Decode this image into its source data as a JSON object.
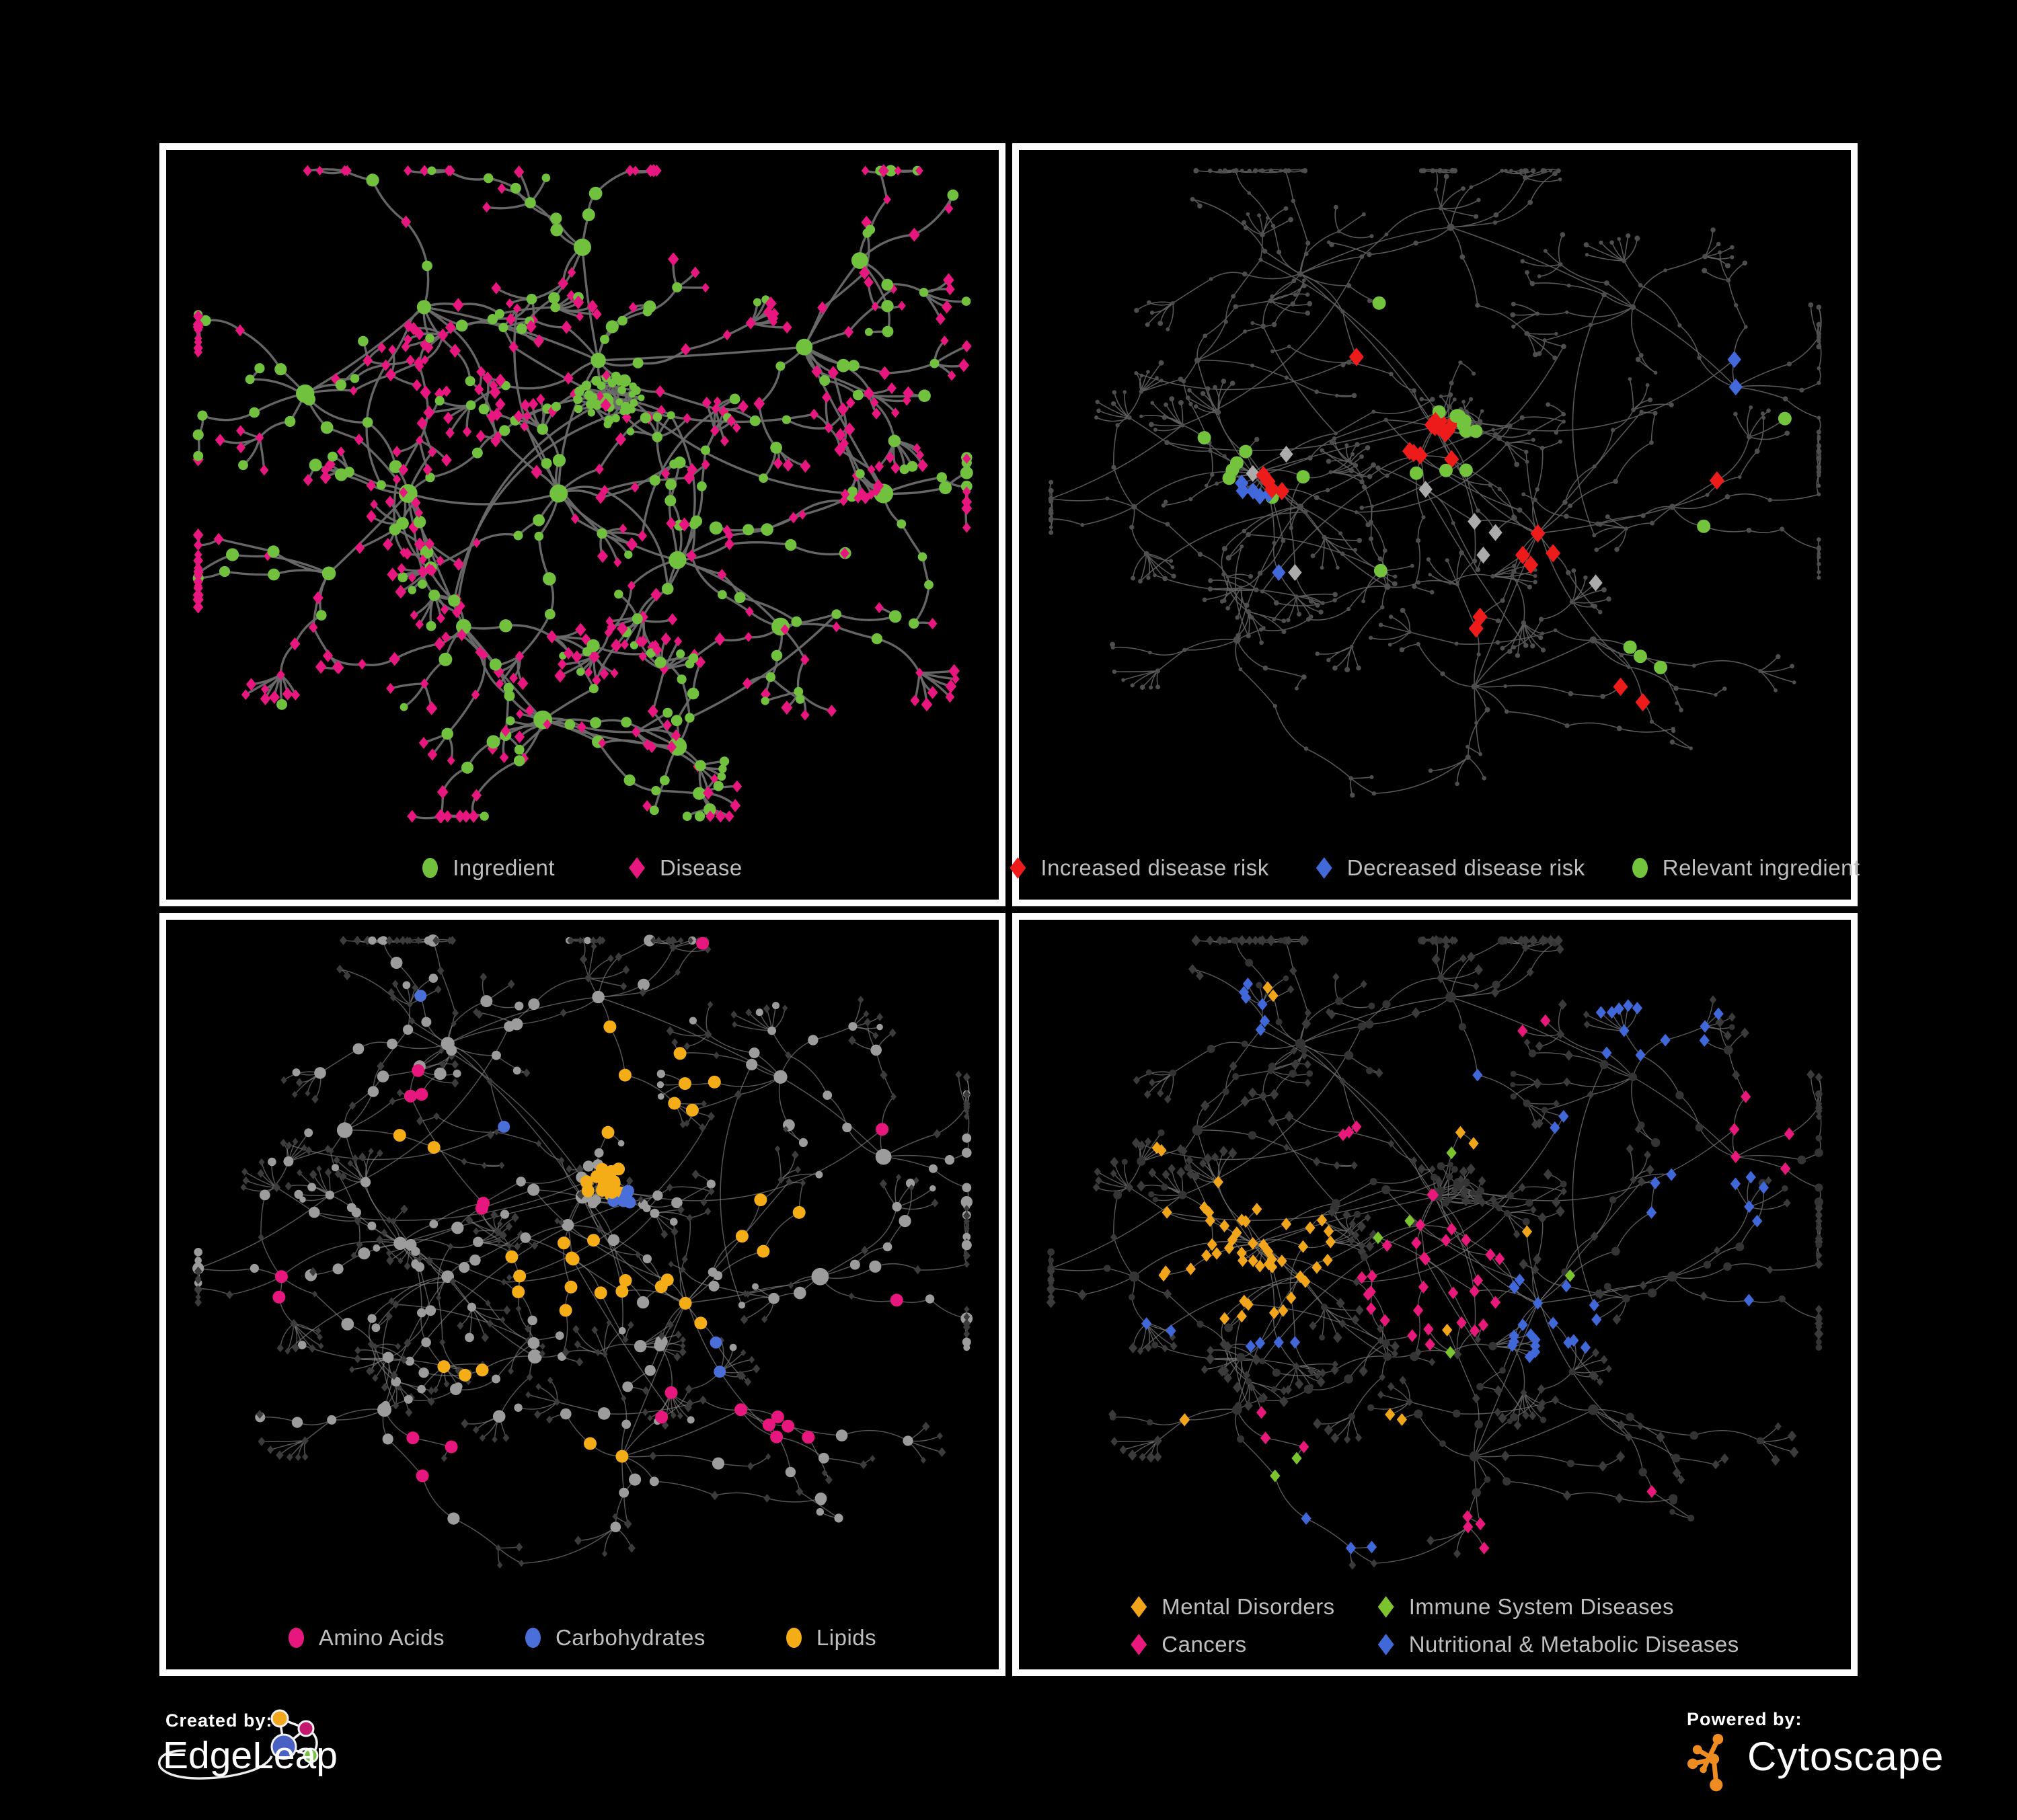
{
  "figure": {
    "background": "#000000",
    "panel_border_color": "#FCFCFC"
  },
  "footer": {
    "created_by_label": "Created by:",
    "edgeleap_brand": "EdgeLeap",
    "powered_by_label": "Powered by:",
    "cytoscape_brand": "Cytoscape",
    "edgeleap_node_colors": {
      "orange": "#F2A71F",
      "magenta": "#C4176E",
      "blue": "#4861C2",
      "green": "#76C043"
    },
    "cytoscape_icon_color": "#EE8B21"
  },
  "topologies": {
    "A": {
      "seed": 1337,
      "internal_diamond_p": 0.42,
      "leaf_diamond_p": 0.83,
      "fan_p": 0.6,
      "crosslinks": 42,
      "ball": [
        0.53,
        0.36,
        40,
        0.045
      ],
      "ball_diamond_p": 0.12,
      "hubs": [
        [
          0.47,
          0.5,
          1.6
        ],
        [
          0.28,
          0.5,
          1.5
        ],
        [
          0.52,
          0.3,
          1.0
        ],
        [
          0.62,
          0.6,
          1.3
        ],
        [
          0.3,
          0.22,
          1.1
        ],
        [
          0.5,
          0.13,
          0.9
        ],
        [
          0.15,
          0.35,
          0.8
        ],
        [
          0.78,
          0.28,
          1.0
        ],
        [
          0.88,
          0.5,
          0.8
        ],
        [
          0.35,
          0.7,
          1.0
        ],
        [
          0.45,
          0.84,
          1.0
        ],
        [
          0.62,
          0.88,
          0.8
        ],
        [
          0.75,
          0.7,
          0.9
        ],
        [
          0.18,
          0.62,
          0.8
        ],
        [
          0.85,
          0.15,
          0.7
        ]
      ]
    },
    "B": {
      "seed": 4242,
      "internal_diamond_p": 0.5,
      "leaf_diamond_p": 0.8,
      "fan_p": 0.58,
      "crosslinks": 60,
      "ball": [
        0.53,
        0.38,
        30,
        0.04
      ],
      "ball_diamond_p": 0.4,
      "hubs": [
        [
          0.5,
          0.4,
          1.6
        ],
        [
          0.27,
          0.47,
          1.5
        ],
        [
          0.33,
          0.52,
          1.0
        ],
        [
          0.63,
          0.56,
          1.3
        ],
        [
          0.55,
          0.79,
          1.2
        ],
        [
          0.33,
          0.17,
          1.1
        ],
        [
          0.52,
          0.1,
          0.9
        ],
        [
          0.2,
          0.3,
          0.9
        ],
        [
          0.75,
          0.22,
          0.9
        ],
        [
          0.88,
          0.34,
          0.8
        ],
        [
          0.8,
          0.52,
          0.9
        ],
        [
          0.25,
          0.72,
          1.0
        ],
        [
          0.44,
          0.64,
          0.8
        ],
        [
          0.7,
          0.72,
          0.9
        ],
        [
          0.12,
          0.52,
          0.7
        ]
      ]
    }
  },
  "panels": [
    {
      "key": "ingredient-disease",
      "topology": "A",
      "legend": {
        "columns": 1,
        "gap": 110,
        "items": [
          {
            "label": "Ingredient",
            "shape": "circle",
            "color": "#72C13E"
          },
          {
            "label": "Disease",
            "shape": "diamond",
            "color": "#E8177F"
          }
        ]
      },
      "style": {
        "edge_color": "#6C6C6C",
        "edge_width": 3.4,
        "edge_opacity": 0.95,
        "circle_fill": "#72C13E",
        "diamond_fill": "#E8177F",
        "r_hub": 12,
        "r_internal": 8,
        "r_leaf": 6.5,
        "r_ball": 6,
        "diamond_s": 8
      },
      "highlights": []
    },
    {
      "key": "disease-risk",
      "topology": "B",
      "legend": {
        "columns": 1,
        "gap": 70,
        "items": [
          {
            "label": "Increased disease risk",
            "shape": "diamond",
            "color": "#EE1B1B"
          },
          {
            "label": "Decreased disease risk",
            "shape": "diamond",
            "color": "#4169D9"
          },
          {
            "label": "Relevant ingredient",
            "shape": "circle",
            "color": "#74C33C"
          }
        ]
      },
      "style": {
        "edge_color": "#606060",
        "edge_width": 1.6,
        "edge_opacity": 0.9,
        "base_mode": "dots",
        "dot_fill": "#4E4E4E",
        "dot_r": 3.2,
        "dot_hub_r": 4.5,
        "circle_fill": "#4E4E4E",
        "diamond_fill": "#4E4E4E",
        "r_hub": 4.5,
        "r_internal": 3.2,
        "r_leaf": 3,
        "r_ball": 3.2,
        "diamond_s": 3.2
      },
      "highlights": [
        {
          "color": "#EE1B1B",
          "shape": "diamond",
          "size": 13,
          "blobs": [
            [
              0.5,
              0.42,
              0.15,
              13
            ],
            [
              0.3,
              0.47,
              0.1,
              4
            ],
            [
              0.63,
              0.58,
              0.1,
              4
            ],
            [
              0.4,
              0.27,
              0.05,
              1
            ],
            [
              0.75,
              0.8,
              0.1,
              2
            ],
            [
              0.86,
              0.44,
              0.06,
              1
            ],
            [
              0.55,
              0.68,
              0.06,
              2
            ]
          ]
        },
        {
          "color": "#4169D9",
          "shape": "diamond",
          "size": 12,
          "blobs": [
            [
              0.27,
              0.5,
              0.09,
              5
            ],
            [
              0.88,
              0.3,
              0.045,
              2
            ],
            [
              0.3,
              0.6,
              0.04,
              1
            ]
          ]
        },
        {
          "color": "#ABABAB",
          "shape": "diamond",
          "size": 12,
          "blobs": [
            [
              0.29,
              0.45,
              0.07,
              2
            ],
            [
              0.57,
              0.56,
              0.12,
              3
            ],
            [
              0.34,
              0.62,
              0.05,
              1
            ],
            [
              0.7,
              0.64,
              0.05,
              1
            ],
            [
              0.52,
              0.5,
              0.05,
              1
            ]
          ]
        },
        {
          "color": "#74C33C",
          "shape": "circle",
          "size": 10,
          "blobs": [
            [
              0.5,
              0.43,
              0.13,
              12
            ],
            [
              0.29,
              0.48,
              0.11,
              6
            ],
            [
              0.42,
              0.62,
              0.05,
              1
            ],
            [
              0.78,
              0.73,
              0.08,
              3
            ],
            [
              0.93,
              0.4,
              0.04,
              1
            ],
            [
              0.86,
              0.55,
              0.05,
              1
            ],
            [
              0.2,
              0.42,
              0.05,
              1
            ],
            [
              0.48,
              0.24,
              0.06,
              2
            ]
          ]
        }
      ]
    },
    {
      "key": "nutrient-categories",
      "topology": "B",
      "legend": {
        "columns": 1,
        "gap": 120,
        "items": [
          {
            "label": "Amino Acids",
            "shape": "circle",
            "color": "#E8177D"
          },
          {
            "label": "Carbohydrates",
            "shape": "circle",
            "color": "#4A6FD8"
          },
          {
            "label": "Lipids",
            "shape": "circle",
            "color": "#F5AD17"
          }
        ]
      },
      "style": {
        "edge_color": "#8C8C8C",
        "edge_width": 1.5,
        "edge_opacity": 0.6,
        "circle_fill": "#9C9C9C",
        "diamond_fill": "#3C3C3C",
        "r_hub": 10.5,
        "r_internal": 7.5,
        "r_leaf": 5.5,
        "r_ball": 7,
        "diamond_s": 5.5,
        "highlight_no_leaf_circles": true
      },
      "highlights": [
        {
          "color": "#F5AD17",
          "shape": "circle",
          "size": 9.5,
          "blobs": [
            [
              0.53,
              0.38,
              0.065,
              18
            ],
            [
              0.48,
              0.52,
              0.12,
              12
            ],
            [
              0.55,
              0.22,
              0.13,
              8
            ],
            [
              0.63,
              0.57,
              0.08,
              4
            ],
            [
              0.76,
              0.45,
              0.2,
              4
            ],
            [
              0.35,
              0.64,
              0.1,
              3
            ],
            [
              0.3,
              0.33,
              0.08,
              2
            ],
            [
              0.5,
              0.78,
              0.07,
              2
            ]
          ]
        },
        {
          "color": "#E8177D",
          "shape": "circle",
          "size": 9.5,
          "blobs": [
            [
              0.3,
              0.24,
              0.1,
              3
            ],
            [
              0.38,
              0.42,
              0.09,
              2
            ],
            [
              0.76,
              0.72,
              0.13,
              6
            ],
            [
              0.3,
              0.8,
              0.1,
              3
            ],
            [
              0.12,
              0.55,
              0.1,
              2
            ],
            [
              0.6,
              0.7,
              0.08,
              2
            ],
            [
              0.9,
              0.3,
              0.06,
              1
            ],
            [
              0.68,
              0.05,
              0.06,
              1
            ],
            [
              0.9,
              0.55,
              0.05,
              1
            ]
          ]
        },
        {
          "color": "#4A6FD8",
          "shape": "circle",
          "size": 9,
          "blobs": [
            [
              0.54,
              0.4,
              0.07,
              6
            ],
            [
              0.1,
              0.28,
              0.06,
              1
            ],
            [
              0.3,
              0.08,
              0.06,
              1
            ],
            [
              0.68,
              0.62,
              0.06,
              2
            ],
            [
              0.42,
              0.3,
              0.06,
              1
            ]
          ]
        }
      ]
    },
    {
      "key": "disease-categories",
      "topology": "B",
      "legend": {
        "columns": 2,
        "gap": 64,
        "items": [
          {
            "label": "Mental Disorders",
            "shape": "diamond",
            "color": "#F0A51B"
          },
          {
            "label": "Immune System Diseases",
            "shape": "diamond",
            "color": "#7CC42E"
          },
          {
            "label": "Cancers",
            "shape": "diamond",
            "color": "#E9197B"
          },
          {
            "label": "Nutritional & Metabolic Diseases",
            "shape": "diamond",
            "color": "#4168D9"
          }
        ]
      },
      "style": {
        "edge_color": "#6F6F6F",
        "edge_width": 1.4,
        "edge_opacity": 0.8,
        "circle_fill": "#343434",
        "diamond_fill": "#3B3B3B",
        "r_hub": 7,
        "r_internal": 5.5,
        "r_leaf": 4.5,
        "r_ball": 5,
        "diamond_s": 6.5
      },
      "highlights": [
        {
          "color": "#F0A51B",
          "shape": "diamond",
          "size": 9,
          "blobs": [
            [
              0.26,
              0.48,
              0.12,
              46
            ],
            [
              0.3,
              0.1,
              0.05,
              2
            ],
            [
              0.15,
              0.32,
              0.06,
              2
            ],
            [
              0.55,
              0.3,
              0.05,
              2
            ],
            [
              0.45,
              0.75,
              0.06,
              2
            ],
            [
              0.63,
              0.47,
              0.04,
              1
            ],
            [
              0.2,
              0.78,
              0.05,
              2
            ],
            [
              0.52,
              0.6,
              0.04,
              1
            ]
          ]
        },
        {
          "color": "#E9197B",
          "shape": "diamond",
          "size": 9,
          "blobs": [
            [
              0.5,
              0.53,
              0.12,
              28
            ],
            [
              0.4,
              0.3,
              0.08,
              3
            ],
            [
              0.92,
              0.3,
              0.07,
              5
            ],
            [
              0.55,
              0.9,
              0.08,
              4
            ],
            [
              0.3,
              0.75,
              0.06,
              3
            ],
            [
              0.47,
              0.4,
              0.05,
              2
            ],
            [
              0.76,
              0.84,
              0.05,
              1
            ],
            [
              0.6,
              0.13,
              0.05,
              2
            ]
          ]
        },
        {
          "color": "#4168D9",
          "shape": "diamond",
          "size": 9,
          "blobs": [
            [
              0.64,
              0.58,
              0.09,
              20
            ],
            [
              0.78,
              0.14,
              0.16,
              12
            ],
            [
              0.25,
              0.12,
              0.1,
              6
            ],
            [
              0.84,
              0.4,
              0.1,
              8
            ],
            [
              0.3,
              0.6,
              0.08,
              4
            ],
            [
              0.4,
              0.88,
              0.07,
              3
            ],
            [
              0.5,
              0.2,
              0.06,
              3
            ],
            [
              0.15,
              0.6,
              0.06,
              2
            ],
            [
              0.7,
              0.3,
              0.06,
              2
            ],
            [
              0.9,
              0.6,
              0.05,
              2
            ]
          ]
        },
        {
          "color": "#7CC42E",
          "shape": "diamond",
          "size": 9,
          "blobs": [
            [
              0.45,
              0.45,
              0.06,
              2
            ],
            [
              0.3,
              0.4,
              0.05,
              1
            ],
            [
              0.52,
              0.32,
              0.04,
              1
            ],
            [
              0.33,
              0.82,
              0.04,
              2
            ],
            [
              0.67,
              0.55,
              0.04,
              1
            ],
            [
              0.72,
              0.9,
              0.035,
              1
            ],
            [
              0.52,
              0.63,
              0.04,
              1
            ]
          ]
        }
      ]
    }
  ]
}
